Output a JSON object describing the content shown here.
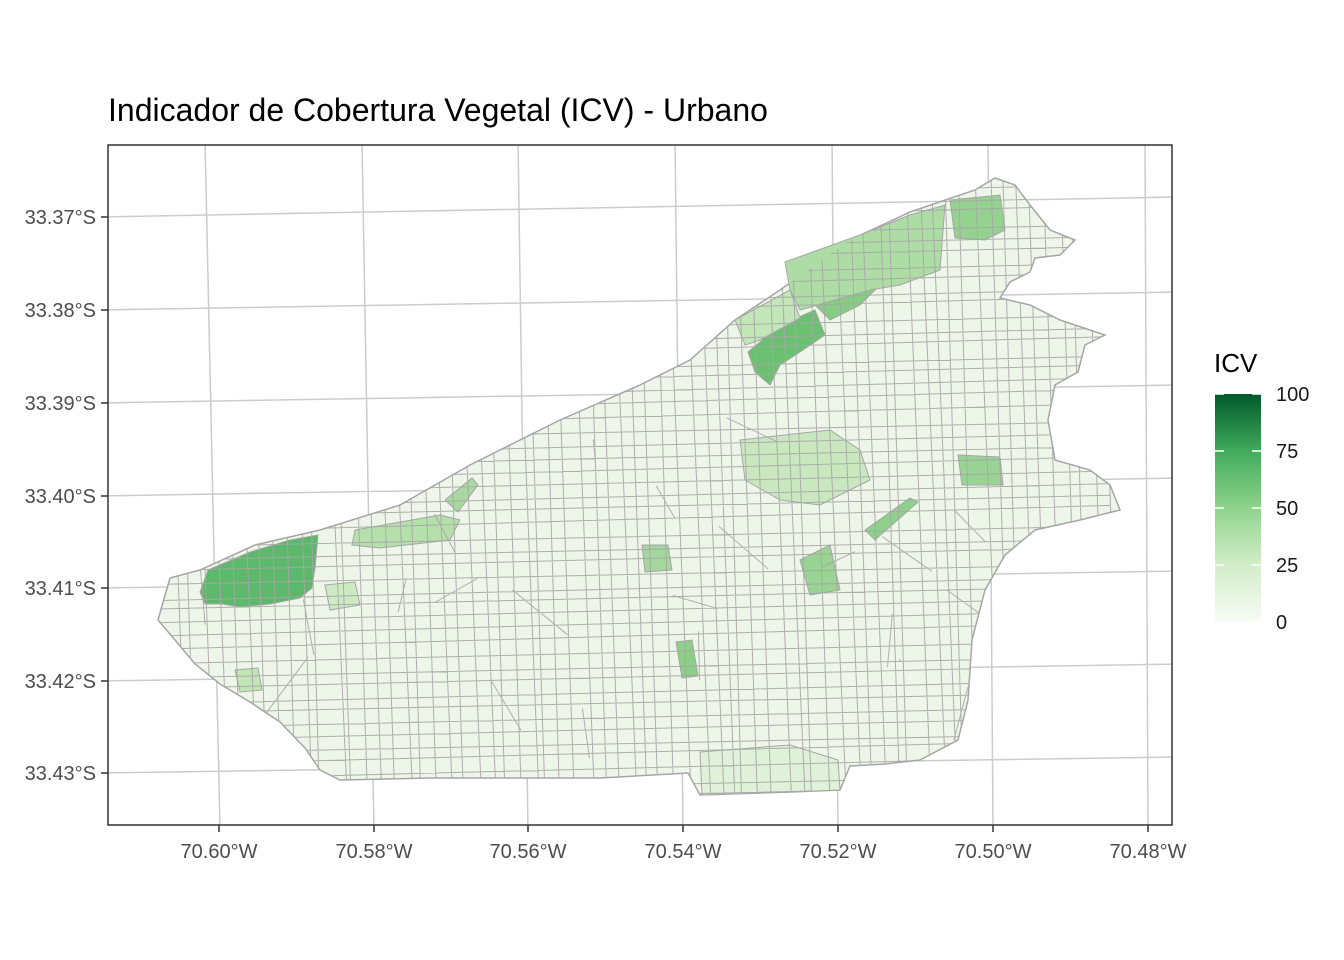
{
  "title": "Indicador de Cobertura Vegetal (ICV) - Urbano",
  "legend": {
    "title": "ICV",
    "breaks": [
      "100",
      "75",
      "50",
      "25",
      "0"
    ],
    "range": [
      0,
      100
    ],
    "color_low": "#f7fcf5",
    "color_high": "#00441b"
  },
  "axes": {
    "x_ticks": [
      "70.60°W",
      "70.58°W",
      "70.56°W",
      "70.54°W",
      "70.52°W",
      "70.50°W",
      "70.48°W"
    ],
    "y_ticks": [
      "33.37°S",
      "33.38°S",
      "33.39°S",
      "33.40°S",
      "33.41°S",
      "33.42°S",
      "33.43°S"
    ]
  },
  "colors": {
    "panel_border": "#333333",
    "graticule": "#cccccc",
    "polygon_border": "#a6a6a6",
    "base_fill": "#eef6ea"
  }
}
